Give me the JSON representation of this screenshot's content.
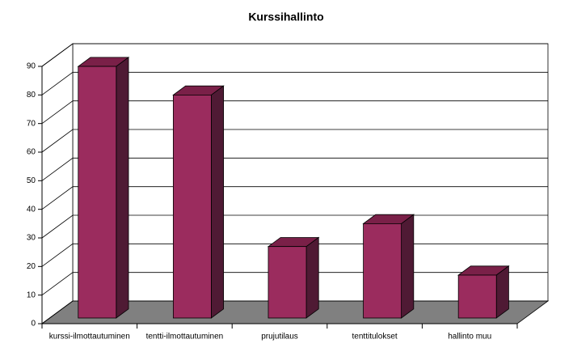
{
  "chart_data": {
    "type": "bar3d",
    "title": "Kurssihallinto",
    "categories": [
      "kurssi-ilmottautuminen",
      "tentti-ilmottautuminen",
      "prujutilaus",
      "tenttitulokset",
      "hallinto muu"
    ],
    "values": [
      88,
      78,
      25,
      33,
      15
    ],
    "color": "#9b2c5e",
    "ylim": [
      0,
      90
    ],
    "yticks": [
      0,
      10,
      20,
      30,
      40,
      50,
      60,
      70,
      80,
      90
    ],
    "grid": true
  }
}
